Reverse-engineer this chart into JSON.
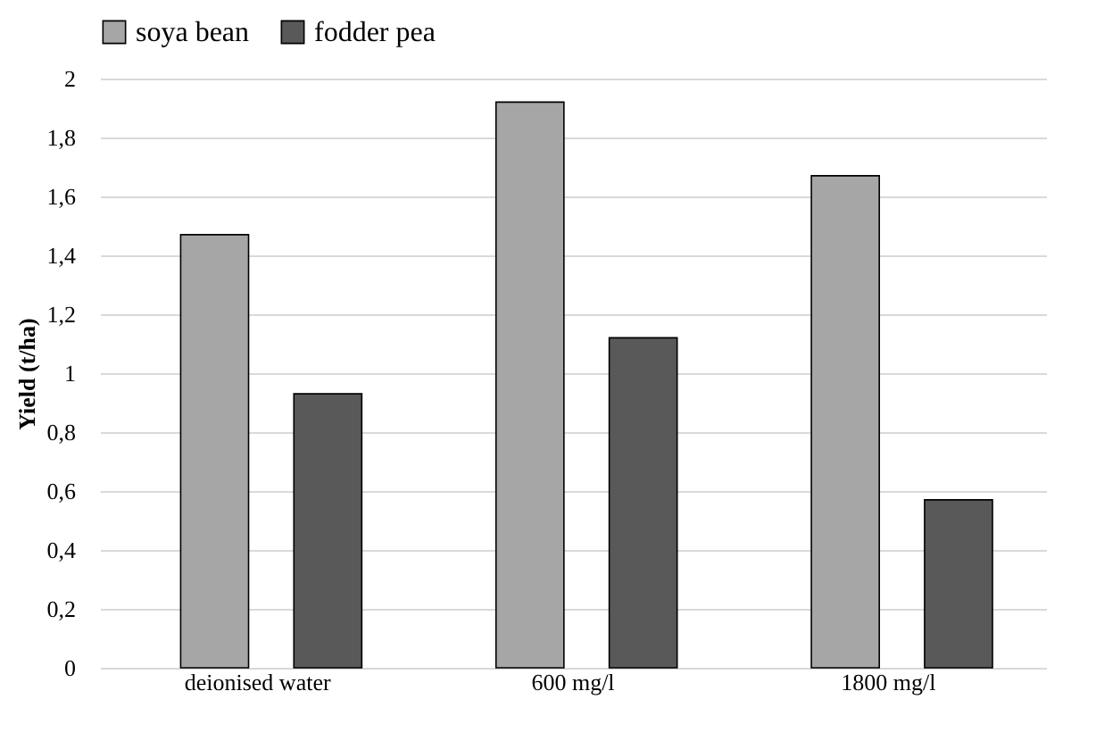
{
  "chart_data": {
    "type": "bar",
    "ylabel": "Yield (t/ha)",
    "categories": [
      "deionised water",
      "600 mg/l",
      "1800 mg/l"
    ],
    "series": [
      {
        "name": "soya bean",
        "color": "#a6a6a6",
        "values": [
          1.47,
          1.92,
          1.67
        ]
      },
      {
        "name": "fodder pea",
        "color": "#595959",
        "values": [
          0.93,
          1.12,
          0.57
        ]
      }
    ],
    "ylim": [
      0,
      2
    ],
    "yticks": [
      0,
      {
        "value": 0.2,
        "label": "0,2"
      },
      {
        "value": 0.4,
        "label": "0,4"
      },
      {
        "value": 0.6,
        "label": "0,6"
      },
      {
        "value": 0.8,
        "label": "0,8"
      },
      1,
      {
        "value": 1.2,
        "label": "1,2"
      },
      {
        "value": 1.4,
        "label": "1,4"
      },
      {
        "value": 1.6,
        "label": "1,6"
      },
      {
        "value": 1.8,
        "label": "1,8"
      },
      2
    ],
    "grid": "y",
    "legend": "top"
  }
}
